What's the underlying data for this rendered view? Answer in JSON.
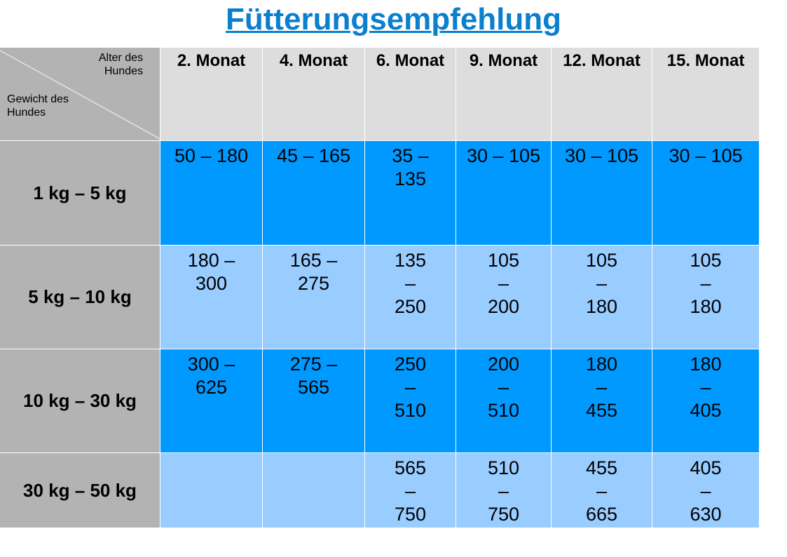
{
  "title": "Fütterungsempfehlung",
  "corner": {
    "top": "Alter des Hundes",
    "bottom": "Gewicht des Hundes"
  },
  "columns": [
    "2. Monat",
    "4. Monat",
    "6. Monat",
    "9. Monat",
    "12. Monat",
    "15. Monat"
  ],
  "rows": [
    {
      "label": "1 kg – 5 kg",
      "values": [
        "50 – 180",
        "45 – 165",
        "35 – 135",
        "30 – 105",
        "30 – 105",
        "30 – 105"
      ]
    },
    {
      "label": "5 kg – 10 kg",
      "values": [
        "180 – 300",
        "165 – 275",
        "135 – 250",
        "105 – 200",
        "105 – 180",
        "105 – 180"
      ]
    },
    {
      "label": "10 kg – 30 kg",
      "values": [
        "300 – 625",
        "275 – 565",
        "250 – 510",
        "200 – 510",
        "180 – 455",
        "180 – 405"
      ]
    },
    {
      "label": "30 kg – 50 kg",
      "values": [
        "",
        "",
        "565 – 750",
        "510 – 750",
        "455 – 665",
        "405 – 630"
      ]
    }
  ],
  "colors": {
    "title": "#0a7fcf",
    "header": "#dddddd",
    "row_label": "#b3b3b3",
    "row_dark": "#0099ff",
    "row_light": "#99ccff"
  }
}
